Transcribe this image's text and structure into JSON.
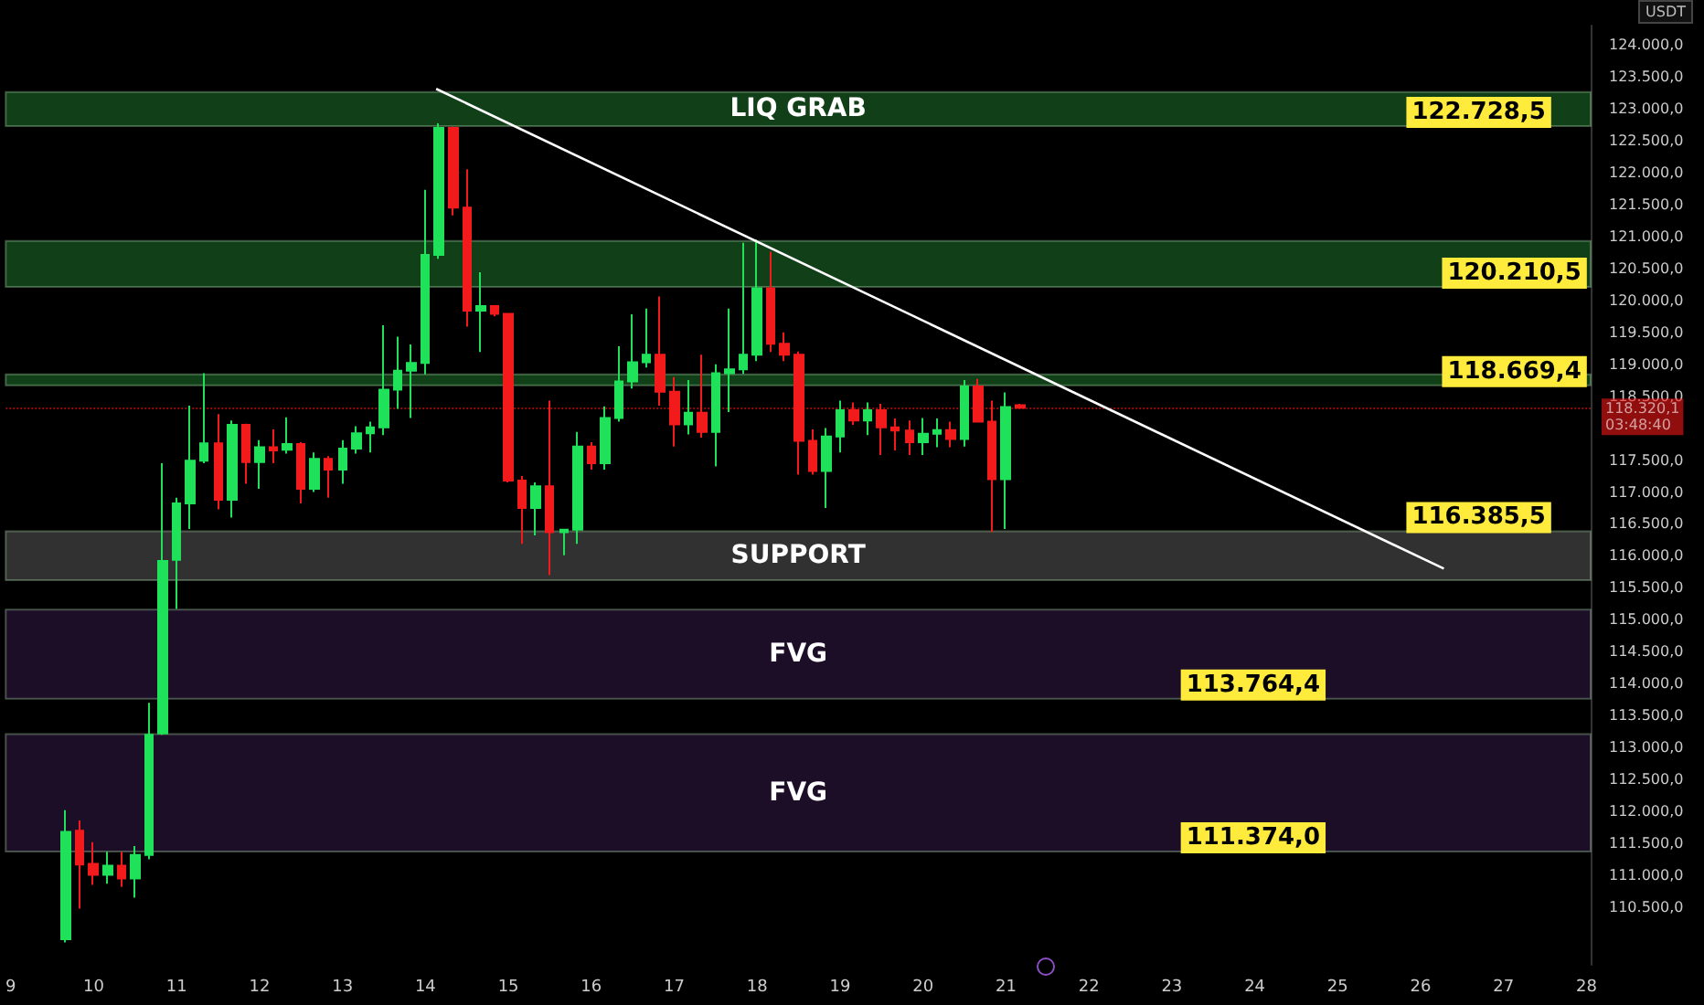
{
  "chart_data": {
    "type": "candlestick",
    "ylabel": "USDT",
    "x": [
      9.667,
      9.833,
      10,
      10.167,
      10.333,
      10.5,
      10.667,
      10.833,
      11,
      11.167,
      11.333,
      11.5,
      11.667,
      11.833,
      12,
      12.167,
      12.333,
      12.5,
      12.667,
      12.833,
      13,
      13.167,
      13.333,
      13.5,
      13.667,
      13.833,
      14,
      14.167,
      14.333,
      14.5,
      14.667,
      14.833,
      15,
      15.167,
      15.333,
      15.5,
      15.667,
      15.833,
      16,
      16.167,
      16.333,
      16.5,
      16.667,
      16.833,
      17,
      17.167,
      17.333,
      17.5,
      17.667,
      17.833,
      18,
      18.167,
      18.333,
      18.5,
      18.667,
      18.833,
      19,
      19.167,
      19.333,
      19.5,
      19.667,
      19.833,
      20,
      20.167,
      20.333,
      20.5,
      20.667,
      20.833,
      21,
      21.167
    ],
    "ohlc": [
      [
        110000,
        112020,
        109950,
        111680
      ],
      [
        111700,
        111860,
        110480,
        111170
      ],
      [
        111180,
        111520,
        110850,
        111010
      ],
      [
        111010,
        111370,
        110870,
        111150
      ],
      [
        111150,
        111370,
        110820,
        110950
      ],
      [
        110950,
        111460,
        110650,
        111320
      ],
      [
        111320,
        113700,
        111250,
        113200
      ],
      [
        113220,
        117450,
        113200,
        115920
      ],
      [
        115940,
        116910,
        115170,
        116820
      ],
      [
        116820,
        118350,
        116420,
        117490
      ],
      [
        117490,
        118860,
        117450,
        117760
      ],
      [
        117760,
        118220,
        116730,
        116880
      ],
      [
        116880,
        118120,
        116600,
        118050
      ],
      [
        118050,
        118070,
        117130,
        117470
      ],
      [
        117470,
        117810,
        117050,
        117700
      ],
      [
        117700,
        117980,
        117450,
        117650
      ],
      [
        117660,
        118170,
        117600,
        117750
      ],
      [
        117750,
        117780,
        116820,
        117050
      ],
      [
        117050,
        117620,
        117000,
        117520
      ],
      [
        117520,
        117560,
        116910,
        117350
      ],
      [
        117350,
        117810,
        117130,
        117680
      ],
      [
        117680,
        118030,
        117600,
        117920
      ],
      [
        117920,
        118100,
        117620,
        118010
      ],
      [
        118010,
        119610,
        117890,
        118600
      ],
      [
        118600,
        119430,
        118300,
        118900
      ],
      [
        118900,
        119310,
        118160,
        119020
      ],
      [
        119020,
        121730,
        118840,
        120710
      ],
      [
        120710,
        122770,
        120650,
        122700
      ],
      [
        122700,
        122720,
        121330,
        121450
      ],
      [
        121450,
        122050,
        119590,
        119840
      ],
      [
        119840,
        120440,
        119190,
        119910
      ],
      [
        119910,
        119920,
        119750,
        119790
      ],
      [
        119790,
        119800,
        117150,
        117180
      ],
      [
        117180,
        117250,
        116190,
        116750
      ],
      [
        116750,
        117150,
        116320,
        117090
      ],
      [
        117090,
        118430,
        115700,
        116370
      ],
      [
        116370,
        116420,
        116010,
        116410
      ],
      [
        116410,
        117940,
        116190,
        117710
      ],
      [
        117710,
        117780,
        117350,
        117450
      ],
      [
        117450,
        118340,
        117350,
        118160
      ],
      [
        118160,
        119280,
        118100,
        118730
      ],
      [
        118730,
        119780,
        118620,
        119030
      ],
      [
        119030,
        119870,
        118950,
        119150
      ],
      [
        119150,
        120060,
        118350,
        118570
      ],
      [
        118570,
        118800,
        117710,
        118060
      ],
      [
        118060,
        118750,
        117900,
        118240
      ],
      [
        118240,
        119150,
        117850,
        117940
      ],
      [
        117940,
        119000,
        117400,
        118860
      ],
      [
        118860,
        119870,
        118250,
        118920
      ],
      [
        118920,
        120900,
        118850,
        119150
      ],
      [
        119150,
        120950,
        119050,
        120190
      ],
      [
        120190,
        120760,
        119190,
        119320
      ],
      [
        119320,
        119500,
        119050,
        119150
      ],
      [
        119150,
        119200,
        117270,
        117800
      ],
      [
        117800,
        117980,
        117270,
        117330
      ],
      [
        117330,
        118000,
        116750,
        117870
      ],
      [
        117870,
        118430,
        117620,
        118280
      ],
      [
        118280,
        118400,
        118050,
        118120
      ],
      [
        118120,
        118400,
        117890,
        118280
      ],
      [
        118280,
        118380,
        117580,
        118010
      ],
      [
        118010,
        118150,
        117650,
        117960
      ],
      [
        117960,
        118120,
        117580,
        117780
      ],
      [
        117780,
        118160,
        117580,
        117910
      ],
      [
        117910,
        118150,
        117700,
        117970
      ],
      [
        117970,
        118100,
        117700,
        117830
      ],
      [
        117830,
        118750,
        117710,
        118650
      ],
      [
        118650,
        118770,
        118100,
        118100
      ],
      [
        118100,
        118430,
        116370,
        117200
      ],
      [
        117200,
        118560,
        116420,
        118330
      ],
      [
        118360,
        118380,
        118300,
        118320
      ]
    ],
    "series": [
      {
        "type": "line",
        "x": [
          14.13,
          26.28
        ],
        "values": [
          123310,
          115800
        ],
        "color": "#ffffff"
      }
    ],
    "xlim": [
      8.94,
      28.05
    ],
    "xticks": [
      9,
      10,
      11,
      12,
      13,
      14,
      15,
      16,
      17,
      18,
      19,
      20,
      21,
      22,
      23,
      24,
      25,
      26,
      27,
      28
    ],
    "ylim": [
      109600,
      124300
    ],
    "yticks": [
      {
        "value": 110500,
        "label": "110.500,0"
      },
      {
        "value": 111000,
        "label": "111.000,0"
      },
      {
        "value": 111500,
        "label": "111.500,0"
      },
      {
        "value": 112000,
        "label": "112.000,0"
      },
      {
        "value": 112500,
        "label": "112.500,0"
      },
      {
        "value": 113000,
        "label": "113.000,0"
      },
      {
        "value": 113500,
        "label": "113.500,0"
      },
      {
        "value": 114000,
        "label": "114.000,0"
      },
      {
        "value": 114500,
        "label": "114.500,0"
      },
      {
        "value": 115000,
        "label": "115.000,0"
      },
      {
        "value": 115500,
        "label": "115.500,0"
      },
      {
        "value": 116000,
        "label": "116.000,0"
      },
      {
        "value": 116500,
        "label": "116.500,0"
      },
      {
        "value": 117000,
        "label": "117.000,0"
      },
      {
        "value": 117500,
        "label": "117.500,0"
      },
      {
        "value": 118500,
        "label": "118.500,0"
      },
      {
        "value": 119000,
        "label": "119.000,0"
      },
      {
        "value": 119500,
        "label": "119.500,0"
      },
      {
        "value": 120000,
        "label": "120.000,0"
      },
      {
        "value": 120500,
        "label": "120.500,0"
      },
      {
        "value": 121000,
        "label": "121.000,0"
      },
      {
        "value": 121500,
        "label": "121.500,0"
      },
      {
        "value": 122000,
        "label": "122.000,0"
      },
      {
        "value": 122500,
        "label": "122.500,0"
      },
      {
        "value": 123000,
        "label": "123.000,0"
      },
      {
        "value": 123500,
        "label": "123.500,0"
      },
      {
        "value": 124000,
        "label": "124.000,0"
      }
    ],
    "bands": [
      {
        "axis": "y",
        "from": 122728.5,
        "to": 123260,
        "label": "LIQ GRAB",
        "color": "#134a1c"
      },
      {
        "axis": "y",
        "from": 120210.5,
        "to": 120930,
        "label": null,
        "color": "#134a1c"
      },
      {
        "axis": "y",
        "from": 118669.4,
        "to": 118840,
        "label": null,
        "color": "#134a1c"
      },
      {
        "axis": "y",
        "from": 115620,
        "to": 116385.5,
        "label": "SUPPORT",
        "color": "#3a3a3a"
      },
      {
        "axis": "y",
        "from": 113764.4,
        "to": 115160,
        "label": "FVG",
        "color": "#22102e"
      },
      {
        "axis": "y",
        "from": 111374,
        "to": 113210,
        "label": "FVG",
        "color": "#22102e"
      }
    ],
    "ref_lines": [
      {
        "axis": "y",
        "value": 118320.1,
        "label": "118.320,1\n03:48:40",
        "color": "#f01818",
        "line_style": "dotted"
      }
    ],
    "annotations": [
      {
        "text": "122.728,5",
        "x": 25.74,
        "y": 122728.5
      },
      {
        "text": "120.210,5",
        "x": 26.17,
        "y": 120210.5
      },
      {
        "text": "118.669,4",
        "x": 26.17,
        "y": 118669.4
      },
      {
        "text": "116.385,5",
        "x": 25.74,
        "y": 116385.5
      },
      {
        "text": "113.764,4",
        "x": 23.02,
        "y": 113764.4
      },
      {
        "text": "111.374,0",
        "x": 23.02,
        "y": 111374
      }
    ]
  }
}
